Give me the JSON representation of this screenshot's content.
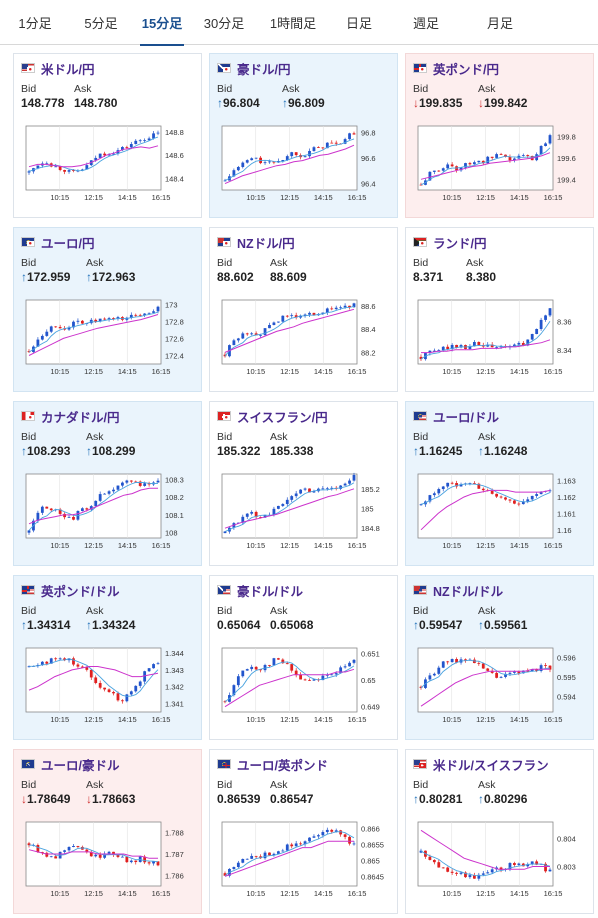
{
  "tabs": [
    "1分足",
    "5分足",
    "15分足",
    "30分足",
    "1時間足",
    "日足",
    "週足",
    "月足"
  ],
  "active_tab": 2,
  "labels": {
    "bid": "Bid",
    "ask": "Ask"
  },
  "x_ticks": [
    "10:15",
    "12:15",
    "14:15",
    "16:15"
  ],
  "colors": {
    "up_arrow": "#1f6fb8",
    "down_arrow": "#d03030",
    "candle_up": "#2255cc",
    "candle_down": "#e02020",
    "ma_short": "#4aa3df",
    "ma_long": "#cc33cc",
    "pair_text": "#4a2a8c"
  },
  "cards": [
    {
      "pair": "米ドル/円",
      "flag": "us-jp",
      "state": "neutral",
      "bid_dir": "",
      "bid": "148.778",
      "ask_dir": "",
      "ask": "148.780",
      "chart_data": {
        "type": "candlestick",
        "y_ticks": [
          "148.8",
          "148.6",
          "148.4"
        ],
        "ylim": [
          148.3,
          148.85
        ],
        "trend": [
          148.45,
          148.52,
          148.55,
          148.5,
          148.48,
          148.44,
          148.47,
          148.52,
          148.6,
          148.62,
          148.63,
          148.66,
          148.7,
          148.73,
          148.76,
          148.78
        ],
        "ma": [
          148.5,
          148.52,
          148.52,
          148.51,
          148.5,
          148.5,
          148.51,
          148.53,
          148.56,
          148.6,
          148.62,
          148.65,
          148.66,
          148.67,
          148.66,
          148.68
        ]
      }
    },
    {
      "pair": "豪ドル/円",
      "flag": "au-jp",
      "state": "up",
      "bid_dir": "↑",
      "bid": "96.804",
      "ask_dir": "↑",
      "ask": "96.809",
      "chart_data": {
        "type": "candlestick",
        "y_ticks": [
          "96.8",
          "96.6",
          "96.4"
        ],
        "ylim": [
          96.35,
          96.85
        ],
        "trend": [
          96.42,
          96.5,
          96.55,
          96.6,
          96.58,
          96.55,
          96.58,
          96.6,
          96.65,
          96.62,
          96.66,
          96.68,
          96.72,
          96.7,
          96.75,
          96.8
        ],
        "ma": [
          96.4,
          96.43,
          96.46,
          96.48,
          96.5,
          96.52,
          96.54,
          96.55,
          96.57,
          96.58,
          96.6,
          96.62,
          96.63,
          96.65,
          96.67,
          96.7
        ]
      }
    },
    {
      "pair": "英ポンド/円",
      "flag": "gb-jp",
      "state": "down",
      "bid_dir": "↓",
      "bid": "199.835",
      "ask_dir": "↓",
      "ask": "199.842",
      "chart_data": {
        "type": "candlestick",
        "y_ticks": [
          "199.8",
          "199.6",
          "199.4"
        ],
        "ylim": [
          199.3,
          199.9
        ],
        "trend": [
          199.35,
          199.45,
          199.48,
          199.55,
          199.5,
          199.52,
          199.58,
          199.55,
          199.6,
          199.62,
          199.58,
          199.6,
          199.62,
          199.6,
          199.7,
          199.82
        ],
        "ma": [
          199.4,
          199.42,
          199.44,
          199.46,
          199.48,
          199.5,
          199.52,
          199.53,
          199.55,
          199.56,
          199.57,
          199.58,
          199.59,
          199.6,
          199.62,
          199.65
        ]
      }
    },
    {
      "pair": "ユーロ/円",
      "flag": "eu-jp",
      "state": "up",
      "bid_dir": "↑",
      "bid": "172.959",
      "ask_dir": "↑",
      "ask": "172.963",
      "chart_data": {
        "type": "candlestick",
        "y_ticks": [
          "173",
          "172.8",
          "172.6",
          "172.4"
        ],
        "ylim": [
          172.3,
          173.05
        ],
        "trend": [
          172.45,
          172.6,
          172.7,
          172.75,
          172.72,
          172.76,
          172.8,
          172.78,
          172.82,
          172.8,
          172.84,
          172.83,
          172.86,
          172.88,
          172.92,
          172.96
        ],
        "ma": [
          172.4,
          172.45,
          172.5,
          172.55,
          172.6,
          172.63,
          172.66,
          172.69,
          172.72,
          172.74,
          172.76,
          172.78,
          172.8,
          172.82,
          172.85,
          172.88
        ]
      }
    },
    {
      "pair": "NZドル/円",
      "flag": "nz-jp",
      "state": "neutral",
      "bid_dir": "",
      "bid": "88.602",
      "ask_dir": "",
      "ask": "88.609",
      "chart_data": {
        "type": "candlestick",
        "y_ticks": [
          "88.6",
          "88.4",
          "88.2"
        ],
        "ylim": [
          88.1,
          88.65
        ],
        "trend": [
          88.18,
          88.3,
          88.35,
          88.38,
          88.36,
          88.4,
          88.48,
          88.5,
          88.52,
          88.5,
          88.53,
          88.55,
          88.56,
          88.58,
          88.6,
          88.6
        ],
        "ma": [
          88.2,
          88.23,
          88.26,
          88.29,
          88.32,
          88.35,
          88.38,
          88.4,
          88.42,
          88.45,
          88.47,
          88.49,
          88.51,
          88.53,
          88.55,
          88.57
        ]
      }
    },
    {
      "pair": "ランド/円",
      "flag": "za-jp",
      "state": "neutral",
      "bid_dir": "",
      "bid": "8.371",
      "ask_dir": "",
      "ask": "8.380",
      "chart_data": {
        "type": "candlestick",
        "y_ticks": [
          "8.36",
          "8.34"
        ],
        "ylim": [
          8.33,
          8.375
        ],
        "trend": [
          8.335,
          8.338,
          8.34,
          8.342,
          8.343,
          8.342,
          8.344,
          8.343,
          8.342,
          8.341,
          8.343,
          8.342,
          8.345,
          8.35,
          8.36,
          8.37
        ],
        "ma": [
          8.338,
          8.338,
          8.339,
          8.339,
          8.34,
          8.34,
          8.34,
          8.341,
          8.341,
          8.341,
          8.342,
          8.342,
          8.343,
          8.344,
          8.345,
          8.347
        ]
      }
    },
    {
      "pair": "カナダドル/円",
      "flag": "ca-jp",
      "state": "up",
      "bid_dir": "↑",
      "bid": "108.293",
      "ask_dir": "↑",
      "ask": "108.299",
      "chart_data": {
        "type": "candlestick",
        "y_ticks": [
          "108.3",
          "108.2",
          "108.1",
          "108"
        ],
        "ylim": [
          107.97,
          108.33
        ],
        "trend": [
          108.0,
          108.12,
          108.15,
          108.12,
          108.1,
          108.08,
          108.12,
          108.15,
          108.2,
          108.22,
          108.24,
          108.28,
          108.3,
          108.27,
          108.28,
          108.29
        ],
        "ma": [
          108.05,
          108.07,
          108.08,
          108.09,
          108.1,
          108.1,
          108.11,
          108.13,
          108.15,
          108.17,
          108.19,
          108.21,
          108.22,
          108.24,
          108.25,
          108.25
        ]
      }
    },
    {
      "pair": "スイスフラン/円",
      "flag": "ch-jp",
      "state": "neutral",
      "bid_dir": "",
      "bid": "185.322",
      "ask_dir": "",
      "ask": "185.338",
      "chart_data": {
        "type": "candlestick",
        "y_ticks": [
          "185.2",
          "185",
          "184.8"
        ],
        "ylim": [
          184.7,
          185.35
        ],
        "trend": [
          184.75,
          184.85,
          184.9,
          184.95,
          184.92,
          184.95,
          185.0,
          185.05,
          185.15,
          185.2,
          185.18,
          185.2,
          185.22,
          185.2,
          185.25,
          185.32
        ],
        "ma": [
          184.8,
          184.83,
          184.86,
          184.88,
          184.9,
          184.92,
          184.94,
          184.97,
          185.0,
          185.03,
          185.06,
          185.09,
          185.12,
          185.14,
          185.17,
          185.2
        ]
      }
    },
    {
      "pair": "ユーロ/ドル",
      "flag": "eu-us",
      "state": "up",
      "bid_dir": "↑",
      "bid": "1.16245",
      "ask_dir": "↑",
      "ask": "1.16248",
      "chart_data": {
        "type": "candlestick",
        "y_ticks": [
          "1.163",
          "1.162",
          "1.161",
          "1.16"
        ],
        "ylim": [
          1.1595,
          1.1634
        ],
        "trend": [
          1.1615,
          1.162,
          1.1625,
          1.1628,
          1.1627,
          1.163,
          1.1628,
          1.1625,
          1.1622,
          1.162,
          1.1618,
          1.1616,
          1.1618,
          1.162,
          1.1622,
          1.1625
        ],
        "ma": [
          1.16,
          1.1605,
          1.161,
          1.1614,
          1.1617,
          1.162,
          1.1622,
          1.1623,
          1.1624,
          1.1624,
          1.1624,
          1.1623,
          1.1623,
          1.1623,
          1.1623,
          1.1624
        ]
      }
    },
    {
      "pair": "英ポンド/ドル",
      "flag": "gb-us",
      "state": "up",
      "bid_dir": "↑",
      "bid": "1.34314",
      "ask_dir": "↑",
      "ask": "1.34324",
      "chart_data": {
        "type": "candlestick",
        "y_ticks": [
          "1.344",
          "1.343",
          "1.342",
          "1.341"
        ],
        "ylim": [
          1.3405,
          1.3443
        ],
        "trend": [
          1.3432,
          1.3434,
          1.3435,
          1.3436,
          1.3437,
          1.3435,
          1.3432,
          1.3428,
          1.3422,
          1.3418,
          1.3414,
          1.3412,
          1.3418,
          1.3425,
          1.3432,
          1.3434
        ],
        "ma": [
          1.3418,
          1.342,
          1.3423,
          1.3426,
          1.3428,
          1.343,
          1.3431,
          1.3432,
          1.3432,
          1.3431,
          1.343,
          1.3428,
          1.3426,
          1.3426,
          1.3427,
          1.3428
        ]
      }
    },
    {
      "pair": "豪ドル/ドル",
      "flag": "au-us",
      "state": "neutral",
      "bid_dir": "",
      "bid": "0.65064",
      "ask_dir": "",
      "ask": "0.65068",
      "chart_data": {
        "type": "candlestick",
        "y_ticks": [
          "0.651",
          "0.65",
          "0.649"
        ],
        "ylim": [
          0.6488,
          0.6512
        ],
        "trend": [
          0.6492,
          0.6498,
          0.6503,
          0.6505,
          0.6504,
          0.6506,
          0.6508,
          0.6506,
          0.6503,
          0.65,
          0.65,
          0.6501,
          0.6502,
          0.6503,
          0.6505,
          0.6507
        ],
        "ma": [
          0.649,
          0.6492,
          0.6494,
          0.6496,
          0.6498,
          0.6499,
          0.65,
          0.6501,
          0.6502,
          0.6502,
          0.6502,
          0.6502,
          0.6502,
          0.6503,
          0.6503,
          0.6504
        ]
      }
    },
    {
      "pair": "NZドル/ドル",
      "flag": "nz-us",
      "state": "up",
      "bid_dir": "↑",
      "bid": "0.59547",
      "ask_dir": "↑",
      "ask": "0.59561",
      "chart_data": {
        "type": "candlestick",
        "y_ticks": [
          "0.596",
          "0.595",
          "0.594"
        ],
        "ylim": [
          0.5932,
          0.5965
        ],
        "trend": [
          0.5945,
          0.595,
          0.5955,
          0.5958,
          0.5958,
          0.596,
          0.5958,
          0.5955,
          0.5952,
          0.595,
          0.5951,
          0.5952,
          0.5953,
          0.5954,
          0.5955,
          0.5955
        ],
        "ma": [
          0.5935,
          0.5938,
          0.5941,
          0.5944,
          0.5947,
          0.5949,
          0.5951,
          0.5952,
          0.5953,
          0.5953,
          0.5953,
          0.5953,
          0.5953,
          0.5954,
          0.5954,
          0.5954
        ]
      }
    },
    {
      "pair": "ユーロ/豪ドル",
      "flag": "eu-au",
      "state": "down",
      "bid_dir": "↓",
      "bid": "1.78649",
      "ask_dir": "↓",
      "ask": "1.78663",
      "chart_data": {
        "type": "candlestick",
        "y_ticks": [
          "1.788",
          "1.787",
          "1.786"
        ],
        "ylim": [
          1.7855,
          1.7885
        ],
        "trend": [
          1.7875,
          1.7872,
          1.787,
          1.7868,
          1.7872,
          1.7875,
          1.7873,
          1.787,
          1.7868,
          1.7872,
          1.787,
          1.7868,
          1.7866,
          1.7868,
          1.7866,
          1.7865
        ],
        "ma": [
          1.7872,
          1.7871,
          1.787,
          1.787,
          1.787,
          1.7871,
          1.7871,
          1.7871,
          1.787,
          1.787,
          1.787,
          1.787,
          1.7869,
          1.7869,
          1.7868,
          1.7868
        ]
      }
    },
    {
      "pair": "ユーロ/英ポンド",
      "flag": "eu-gb",
      "state": "neutral",
      "bid_dir": "",
      "bid": "0.86539",
      "ask_dir": "",
      "ask": "0.86547",
      "chart_data": {
        "type": "candlestick",
        "y_ticks": [
          "0.866",
          "0.8655",
          "0.865",
          "0.8645"
        ],
        "ylim": [
          0.8642,
          0.8662
        ],
        "trend": [
          0.8646,
          0.8648,
          0.865,
          0.8652,
          0.8651,
          0.8652,
          0.8653,
          0.8654,
          0.8655,
          0.8656,
          0.8657,
          0.8658,
          0.8659,
          0.866,
          0.8657,
          0.8655
        ],
        "ma": [
          0.8645,
          0.8646,
          0.8647,
          0.8648,
          0.8649,
          0.865,
          0.8651,
          0.8652,
          0.8653,
          0.8654,
          0.8654,
          0.8655,
          0.8656,
          0.8656,
          0.8656,
          0.8656
        ]
      }
    },
    {
      "pair": "米ドル/スイスフラン",
      "flag": "us-ch",
      "state": "neutral",
      "bid_dir": "↑",
      "bid": "0.80281",
      "ask_dir": "↑",
      "ask": "0.80296",
      "chart_data": {
        "type": "candlestick",
        "y_ticks": [
          "0.804",
          "0.803"
        ],
        "ylim": [
          0.8023,
          0.8046
        ],
        "trend": [
          0.8035,
          0.8032,
          0.803,
          0.8029,
          0.8028,
          0.8027,
          0.8026,
          0.8027,
          0.8028,
          0.8029,
          0.803,
          0.8031,
          0.8031,
          0.8032,
          0.803,
          0.8028
        ],
        "ma": [
          0.8043,
          0.8041,
          0.8039,
          0.8037,
          0.8035,
          0.8033,
          0.8032,
          0.8031,
          0.803,
          0.8029,
          0.8029,
          0.8029,
          0.8029,
          0.803,
          0.803,
          0.803
        ]
      }
    }
  ]
}
